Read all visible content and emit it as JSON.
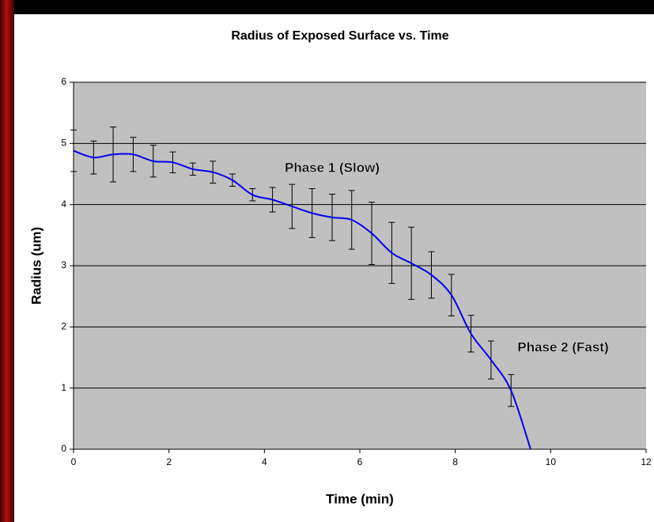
{
  "chart_data": {
    "type": "line",
    "title": "Radius of Exposed Surface vs. Time",
    "x_label": "Time (min)",
    "y_label": "Radius (um)",
    "x": [
      0,
      0.42,
      0.83,
      1.25,
      1.67,
      2.08,
      2.5,
      2.92,
      3.33,
      3.75,
      4.17,
      4.58,
      5,
      5.42,
      5.83,
      6.25,
      6.67,
      7.08,
      7.5,
      7.92,
      8.33,
      8.75,
      9.17,
      9.58
    ],
    "values": [
      4.88,
      4.77,
      4.82,
      4.82,
      4.71,
      4.69,
      4.58,
      4.53,
      4.4,
      4.16,
      4.08,
      3.97,
      3.86,
      3.79,
      3.75,
      3.53,
      3.21,
      3.04,
      2.85,
      2.52,
      1.89,
      1.46,
      0.96,
      0
    ],
    "errors": [
      0.34,
      0.27,
      0.45,
      0.28,
      0.26,
      0.17,
      0.1,
      0.18,
      0.1,
      0.1,
      0.2,
      0.36,
      0.4,
      0.38,
      0.48,
      0.51,
      0.5,
      0.59,
      0.38,
      0.34,
      0.3,
      0.31,
      0.26,
      null
    ],
    "color": "#0000ee",
    "xlim": [
      0,
      12
    ],
    "xticks": [
      0,
      2,
      4,
      6,
      8,
      10,
      12
    ],
    "ylim": [
      0,
      6
    ],
    "yticks": [
      0,
      1,
      2,
      3,
      4,
      5,
      6
    ],
    "grid": true,
    "annotations": [
      "Phase 1 (Slow)",
      "Phase 2 (Fast)"
    ]
  }
}
